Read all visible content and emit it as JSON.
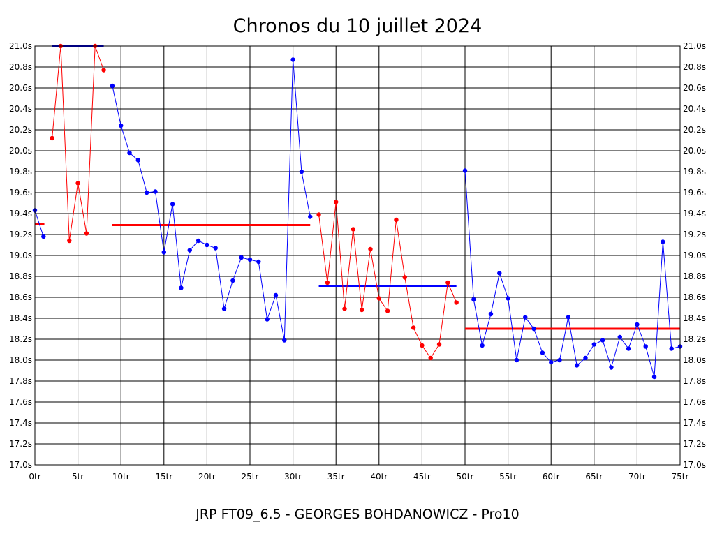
{
  "chart_data": {
    "type": "line",
    "title": "Chronos du 10 juillet 2024",
    "subtitle": "JRP FT09_6.5 - GEORGES BOHDANOWICZ - Pro10",
    "xlim": [
      0,
      75
    ],
    "ylim": [
      17.0,
      21.0
    ],
    "grid": true,
    "x_ticks": [
      0,
      5,
      10,
      15,
      20,
      25,
      30,
      35,
      40,
      45,
      50,
      55,
      60,
      65,
      70,
      75
    ],
    "x_tick_labels": [
      "0tr",
      "5tr",
      "10tr",
      "15tr",
      "20tr",
      "25tr",
      "30tr",
      "35tr",
      "40tr",
      "45tr",
      "50tr",
      "55tr",
      "60tr",
      "65tr",
      "70tr",
      "75tr"
    ],
    "y_ticks": [
      17.0,
      17.2,
      17.4,
      17.6,
      17.8,
      18.0,
      18.2,
      18.4,
      18.6,
      18.8,
      19.0,
      19.2,
      19.4,
      19.6,
      19.8,
      20.0,
      20.2,
      20.4,
      20.6,
      20.8,
      21.0
    ],
    "y_tick_labels": [
      "17.0s",
      "17.2s",
      "17.4s",
      "17.6s",
      "17.8s",
      "18.0s",
      "18.2s",
      "18.4s",
      "18.6s",
      "18.8s",
      "19.0s",
      "19.2s",
      "19.4s",
      "19.6s",
      "19.8s",
      "20.0s",
      "20.2s",
      "20.4s",
      "20.6s",
      "20.8s",
      "21.0s"
    ],
    "series": [
      {
        "color": "#0000ff",
        "x": [
          0,
          1
        ],
        "y": [
          19.43,
          19.18
        ]
      },
      {
        "color": "#ff0000",
        "x": [
          2,
          3,
          4,
          5,
          6,
          7,
          8
        ],
        "y": [
          20.12,
          21.0,
          19.14,
          19.69,
          19.21,
          21.0,
          20.77
        ]
      },
      {
        "color": "#0000ff",
        "x": [
          9,
          10,
          11,
          12,
          13,
          14,
          15,
          16,
          17,
          18,
          19,
          20,
          21,
          22,
          23,
          24,
          25,
          26,
          27,
          28,
          29,
          30,
          31,
          32
        ],
        "y": [
          20.62,
          20.24,
          19.98,
          19.91,
          19.6,
          19.61,
          19.03,
          19.49,
          18.69,
          19.05,
          19.14,
          19.1,
          19.07,
          18.49,
          18.76,
          18.98,
          18.96,
          18.94,
          18.39,
          18.62,
          18.19,
          20.87,
          19.8,
          19.37
        ]
      },
      {
        "color": "#ff0000",
        "x": [
          33,
          34,
          35,
          36,
          37,
          38,
          39,
          40,
          41,
          42,
          43,
          44,
          45,
          46,
          47,
          48,
          49
        ],
        "y": [
          19.39,
          18.74,
          19.51,
          18.49,
          19.25,
          18.48,
          19.06,
          18.59,
          18.47,
          19.34,
          18.79,
          18.31,
          18.14,
          18.02,
          18.15,
          18.74,
          18.55
        ]
      },
      {
        "color": "#0000ff",
        "x": [
          50,
          51,
          52,
          53,
          54,
          55,
          56,
          57,
          58,
          59,
          60,
          61,
          62,
          63,
          64,
          65,
          66,
          67,
          68,
          69,
          70,
          71,
          72,
          73,
          74,
          75
        ],
        "y": [
          19.81,
          18.58,
          18.14,
          18.44,
          18.83,
          18.59,
          18.0,
          18.41,
          18.3,
          18.07,
          17.98,
          18.0,
          18.41,
          17.95,
          18.02,
          18.15,
          18.19,
          17.93,
          18.22,
          18.11,
          18.34,
          18.13,
          17.84,
          19.13,
          18.11,
          18.13
        ]
      }
    ],
    "averages": [
      {
        "color": "#ff0000",
        "x_start": 0,
        "x_end": 1.1,
        "y": 19.3
      },
      {
        "color": "#0000ff",
        "x_start": 2,
        "x_end": 8,
        "y": 21.0
      },
      {
        "color": "#ff0000",
        "x_start": 9,
        "x_end": 32,
        "y": 19.29
      },
      {
        "color": "#0000ff",
        "x_start": 33,
        "x_end": 49,
        "y": 18.71
      },
      {
        "color": "#ff0000",
        "x_start": 50,
        "x_end": 75,
        "y": 18.3
      }
    ]
  }
}
